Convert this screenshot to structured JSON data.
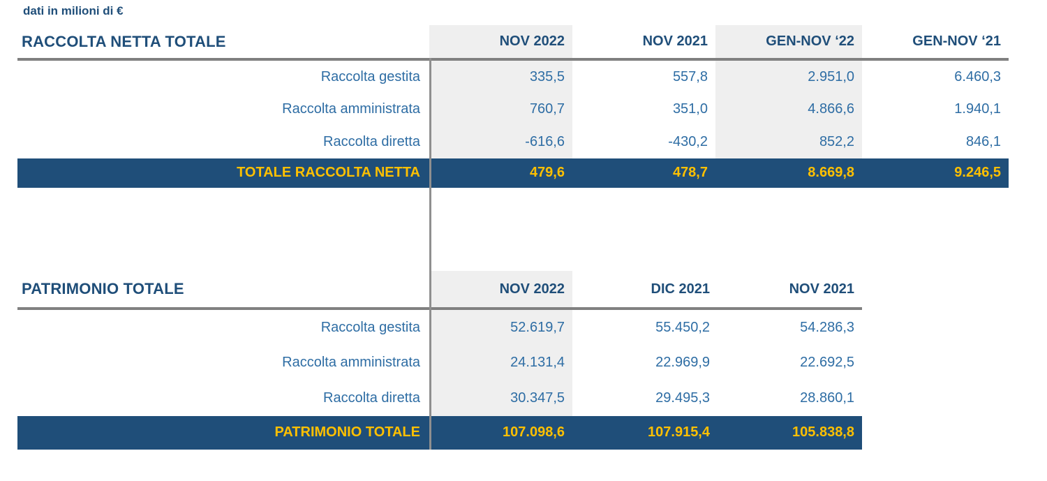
{
  "note": "dati in milioni di €",
  "colors": {
    "navy_band": "#1F4E79",
    "gold_text": "#FFC000",
    "body_text_blue": "#2E6DA4",
    "header_text_blue": "#1F4E79",
    "column_shade": "#EFEFEF",
    "rule_gray": "#808080"
  },
  "raccolta": {
    "title": "RACCOLTA NETTA TOTALE",
    "columns": [
      "NOV 2022",
      "NOV 2021",
      "GEN-NOV ‘22",
      "GEN-NOV ‘21"
    ],
    "rows": [
      {
        "label": "Raccolta gestita",
        "values": [
          "335,5",
          "557,8",
          "2.951,0",
          "6.460,3"
        ]
      },
      {
        "label": "Raccolta amministrata",
        "values": [
          "760,7",
          "351,0",
          "4.866,6",
          "1.940,1"
        ]
      },
      {
        "label": "Raccolta diretta",
        "values": [
          "-616,6",
          "-430,2",
          "852,2",
          "846,1"
        ]
      }
    ],
    "total": {
      "label": "TOTALE RACCOLTA NETTA",
      "values": [
        "479,6",
        "478,7",
        "8.669,8",
        "9.246,5"
      ]
    }
  },
  "patrimonio": {
    "title": "PATRIMONIO TOTALE",
    "columns": [
      "NOV 2022",
      "DIC 2021",
      "NOV 2021"
    ],
    "rows": [
      {
        "label": "Raccolta gestita",
        "values": [
          "52.619,7",
          "55.450,2",
          "54.286,3"
        ]
      },
      {
        "label": "Raccolta amministrata",
        "values": [
          "24.131,4",
          "22.969,9",
          "22.692,5"
        ]
      },
      {
        "label": "Raccolta diretta",
        "values": [
          "30.347,5",
          "29.495,3",
          "28.860,1"
        ]
      }
    ],
    "total": {
      "label": "PATRIMONIO TOTALE",
      "values": [
        "107.098,6",
        "107.915,4",
        "105.838,8"
      ]
    }
  }
}
